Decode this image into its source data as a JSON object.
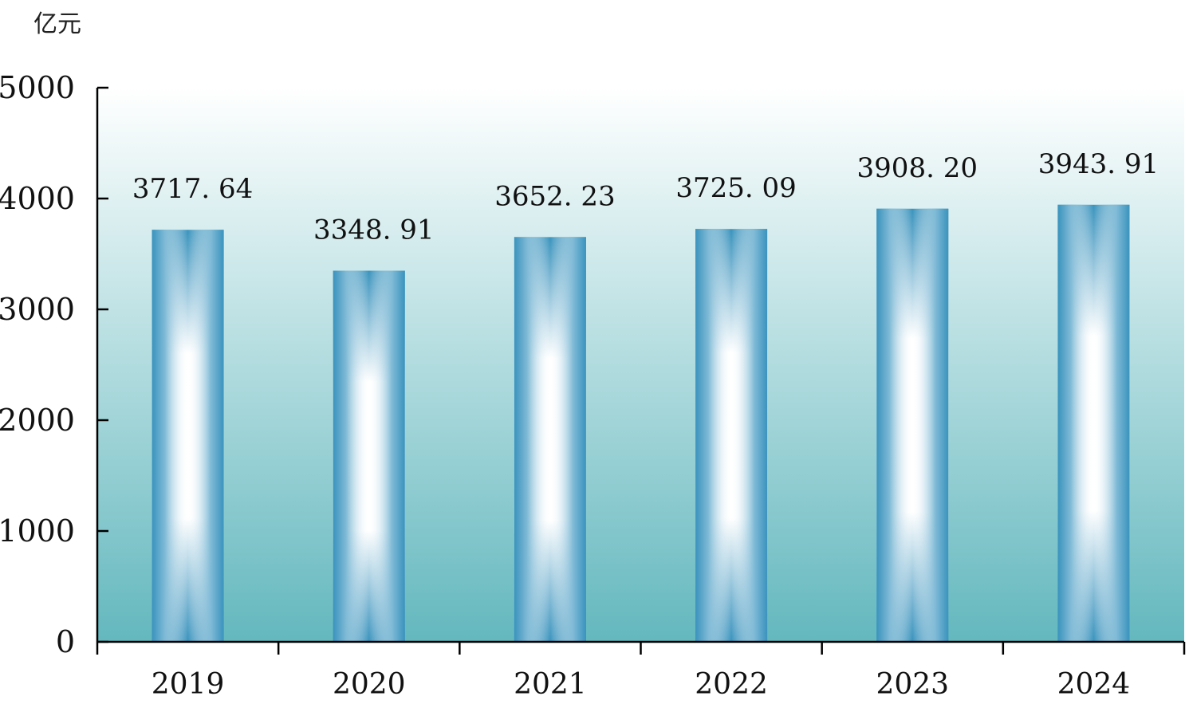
{
  "chart_data": {
    "type": "bar",
    "ylabel": "亿元",
    "ylim": [
      0,
      5000
    ],
    "yticks": [
      0,
      1000,
      2000,
      3000,
      4000,
      5000
    ],
    "categories": [
      "2019",
      "2020",
      "2021",
      "2022",
      "2023",
      "2024"
    ],
    "values": [
      3717.64,
      3348.91,
      3652.23,
      3725.09,
      3908.2,
      3943.91
    ],
    "value_labels": [
      "3717. 64",
      "3348. 91",
      "3652. 23",
      "3725. 09",
      "3908. 20",
      "3943. 91"
    ],
    "grid": false,
    "legend": "none",
    "colors": {
      "bar_edge": "#3a93bd",
      "bar_center": "#ffffff",
      "plot_bg_top": "#ffffff",
      "plot_bg_bottom": "#63b8be",
      "axis": "#000000"
    }
  }
}
